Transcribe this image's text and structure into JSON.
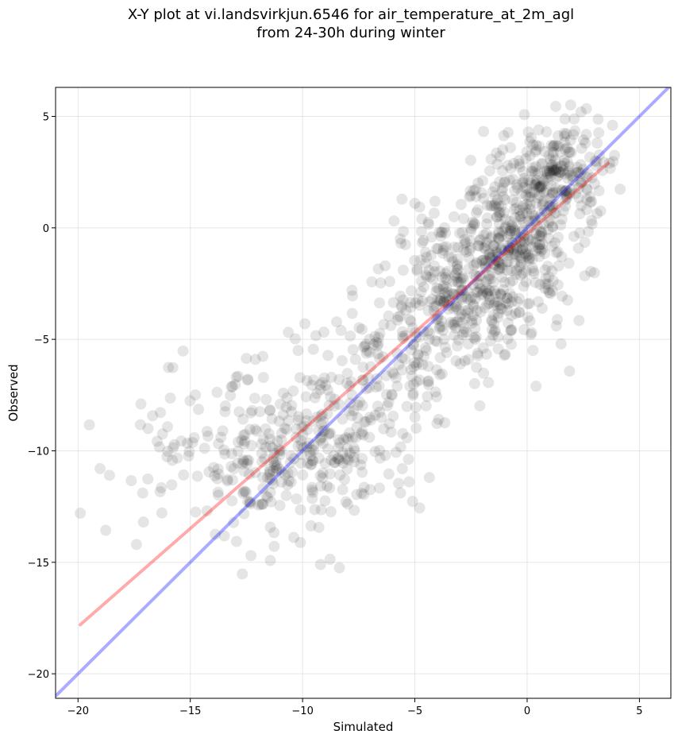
{
  "chart_data": {
    "type": "scatter",
    "title_line1": "X-Y plot at vi.landsvirkjun.6546 for air_temperature_at_2m_agl",
    "title_line2": "from 24-30h during winter",
    "xlabel": "Simulated",
    "ylabel": "Observed",
    "xlim": [
      -21.0,
      6.4
    ],
    "ylim": [
      -21.1,
      6.3
    ],
    "xticks": [
      -20,
      -15,
      -10,
      -5,
      0,
      5
    ],
    "yticks": [
      -20,
      -15,
      -10,
      -5,
      0,
      5
    ],
    "xtick_labels": [
      "−20",
      "−15",
      "−10",
      "−5",
      "0",
      "5"
    ],
    "ytick_labels": [
      "−20",
      "−15",
      "−10",
      "−5",
      "0",
      "5"
    ],
    "grid": true,
    "point_color": "#000000",
    "point_opacity": 0.1,
    "identity_line": {
      "color": "#0000ff",
      "opacity": 0.33,
      "x": [
        -21.0,
        6.4
      ],
      "y": [
        -21.0,
        6.4
      ]
    },
    "fit_line": {
      "color": "#ff0000",
      "opacity": 0.33,
      "x": [
        -19.9,
        3.6
      ],
      "y": [
        -17.8,
        2.9
      ]
    },
    "scatter_clusters": [
      {
        "cx": 1.2,
        "cy": 2.3,
        "sx": 1.2,
        "sy": 1.2,
        "n": 240
      },
      {
        "cx": -0.8,
        "cy": -0.5,
        "sx": 1.4,
        "sy": 1.3,
        "n": 260
      },
      {
        "cx": -3.2,
        "cy": -3.0,
        "sx": 1.6,
        "sy": 1.5,
        "n": 240
      },
      {
        "cx": -1.5,
        "cy": -4.0,
        "sx": 1.8,
        "sy": 1.2,
        "n": 80
      },
      {
        "cx": -6.0,
        "cy": -6.2,
        "sx": 1.8,
        "sy": 1.6,
        "n": 110
      },
      {
        "cx": -8.5,
        "cy": -9.5,
        "sx": 1.9,
        "sy": 1.7,
        "n": 170
      },
      {
        "cx": -11.5,
        "cy": -10.5,
        "sx": 1.5,
        "sy": 1.8,
        "n": 150
      },
      {
        "cx": -15.2,
        "cy": -10.0,
        "sx": 1.7,
        "sy": 1.8,
        "n": 55
      }
    ],
    "scatter_points": [
      {
        "x": -19.9,
        "y": -12.8
      },
      {
        "x": -18.6,
        "y": -11.1
      },
      {
        "x": -17.4,
        "y": -14.2
      },
      {
        "x": -17.2,
        "y": -7.9
      },
      {
        "x": -5.0,
        "y": 1.1
      },
      {
        "x": -9.2,
        "y": -15.1
      },
      {
        "x": -12.3,
        "y": -14.7
      },
      {
        "x": 2.4,
        "y": 5.2
      },
      {
        "x": 3.8,
        "y": 4.6
      },
      {
        "x": -9.9,
        "y": -4.3
      },
      {
        "x": -7.8,
        "y": -2.8
      },
      {
        "x": -12.1,
        "y": -5.9
      },
      {
        "x": 0.2,
        "y": -4.7
      },
      {
        "x": 1.3,
        "y": -4.4
      },
      {
        "x": -2.2,
        "y": 0.8
      },
      {
        "x": -10.2,
        "y": -5.5
      }
    ]
  }
}
